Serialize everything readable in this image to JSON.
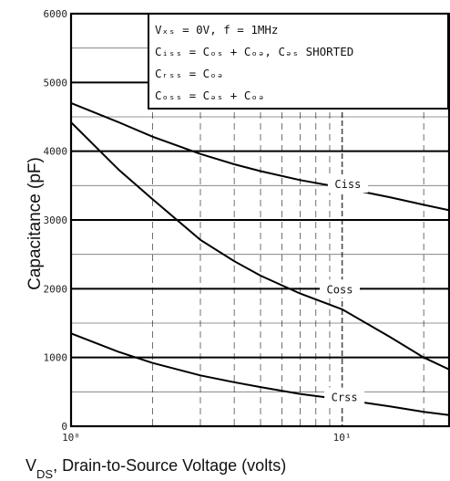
{
  "chart_data": {
    "type": "line",
    "title": "",
    "xlabel_main": "V",
    "xlabel_sub": "DS",
    "xlabel_rest": ", Drain-to-Source Voltage (volts)",
    "ylabel": "Capacitance (pF)",
    "x_scale": "log",
    "xlim": [
      1,
      25
    ],
    "ylim": [
      0,
      6000
    ],
    "x_ticks": [
      {
        "value": 1,
        "label": "10⁰"
      },
      {
        "value": 10,
        "label": "10¹"
      }
    ],
    "y_ticks": [
      {
        "value": 0,
        "label": "0"
      },
      {
        "value": 1000,
        "label": "1000"
      },
      {
        "value": 2000,
        "label": "2000"
      },
      {
        "value": 3000,
        "label": "3000"
      },
      {
        "value": 4000,
        "label": "4000"
      },
      {
        "value": 5000,
        "label": "5000"
      },
      {
        "value": 6000,
        "label": "6000"
      }
    ],
    "grid": true,
    "legend_box": {
      "position": "top-right",
      "lines": [
        "Vₓₛ = 0V,   f = 1MHz",
        "Cᵢₛₛ = Cₒₛ + Cₒₔ,  Cₔₛ SHORTED",
        "Cᵣₛₛ = Cₒₔ",
        "Cₒₛₛ = Cₔₛ + Cₒₔ"
      ]
    },
    "series": [
      {
        "name": "Ciss",
        "x": [
          1,
          1.5,
          2,
          3,
          4,
          5,
          7,
          10,
          15,
          20,
          25
        ],
        "y": [
          4700,
          4420,
          4210,
          3960,
          3810,
          3710,
          3580,
          3470,
          3330,
          3220,
          3140
        ]
      },
      {
        "name": "Coss",
        "x": [
          1,
          1.5,
          2,
          3,
          4,
          5,
          7,
          10,
          15,
          20,
          25
        ],
        "y": [
          4420,
          3730,
          3300,
          2710,
          2400,
          2190,
          1930,
          1700,
          1300,
          1000,
          820
        ]
      },
      {
        "name": "Crss",
        "x": [
          1,
          1.5,
          2,
          3,
          4,
          5,
          7,
          10,
          15,
          20,
          25
        ],
        "y": [
          1350,
          1080,
          920,
          740,
          640,
          570,
          470,
          390,
          290,
          210,
          160
        ]
      }
    ]
  }
}
